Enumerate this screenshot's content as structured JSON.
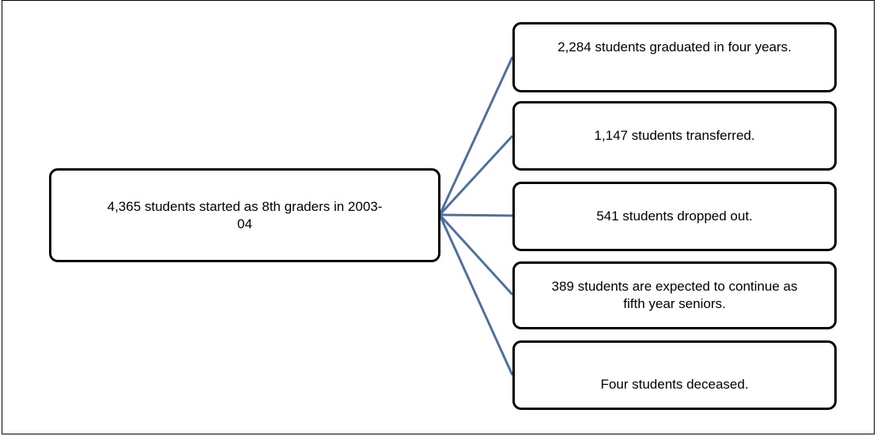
{
  "root": {
    "label": "4,365 students started as 8th graders in 2003-04"
  },
  "nodes": [
    {
      "label": "2,284 students graduated in four years."
    },
    {
      "label": "1,147 students transferred."
    },
    {
      "label": "541 students dropped out."
    },
    {
      "label": "389 students are expected to continue as fifth year seniors."
    },
    {
      "label": "Four students deceased."
    }
  ]
}
